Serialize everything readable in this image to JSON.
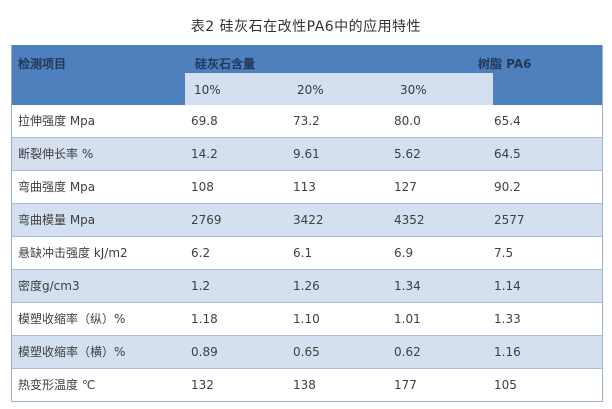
{
  "title": "表2 硅灰石在改性PA6中的应用特性",
  "colors": {
    "header_bg": "#4d80bc",
    "subheader_bg": "#d4dfef",
    "stripe_bg": "#d4dfef",
    "border": "#9ab1d4",
    "header_text": "#24395b",
    "body_text": "#404040"
  },
  "table": {
    "header": {
      "col_item": "检测项目",
      "col_group": "硅灰石含量",
      "col_resin": "树脂 PA6",
      "subcols": [
        "10%",
        "20%",
        "30%"
      ]
    },
    "rows": [
      {
        "label": "拉伸强度 Mpa",
        "values": [
          "69.8",
          "73.2",
          "80.0",
          "65.4"
        ]
      },
      {
        "label": "断裂伸长率 %",
        "values": [
          "14.2",
          "9.61",
          "5.62",
          "64.5"
        ]
      },
      {
        "label": "弯曲强度 Mpa",
        "values": [
          "108",
          "113",
          "127",
          "90.2"
        ]
      },
      {
        "label": "弯曲模量 Mpa",
        "values": [
          "2769",
          "3422",
          "4352",
          "2577"
        ]
      },
      {
        "label": "悬缺冲击强度 kJ/m2",
        "values": [
          "6.2",
          "6.1",
          "6.9",
          "7.5"
        ]
      },
      {
        "label": "密度g/cm3",
        "values": [
          "1.2",
          "1.26",
          "1.34",
          "1.14"
        ]
      },
      {
        "label": "模塑收缩率（纵）%",
        "values": [
          "1.18",
          "1.10",
          "1.01",
          "1.33"
        ]
      },
      {
        "label": "模塑收缩率（横）%",
        "values": [
          "0.89",
          "0.65",
          "0.62",
          "1.16"
        ]
      },
      {
        "label": "热变形温度 ℃",
        "values": [
          "132",
          "138",
          "177",
          "105"
        ]
      }
    ]
  }
}
